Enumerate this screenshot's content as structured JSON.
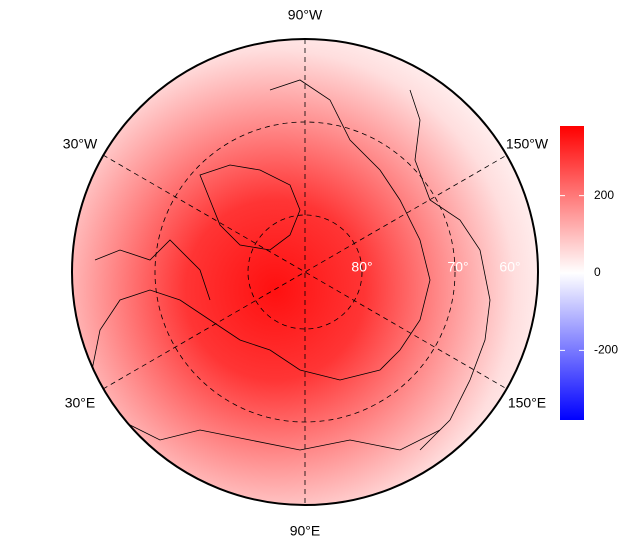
{
  "map": {
    "projection": "polar",
    "longitude_labels": [
      "90°W",
      "30°W",
      "150°W",
      "30°E",
      "150°E",
      "90°E"
    ],
    "latitude_labels": [
      "80°",
      "70°",
      "60°"
    ]
  },
  "colorbar": {
    "lim": [
      -380,
      380
    ],
    "ticks": [
      -200,
      0,
      200
    ],
    "colors": [
      "#0000ff",
      "#ffffff",
      "#ff0000"
    ]
  }
}
